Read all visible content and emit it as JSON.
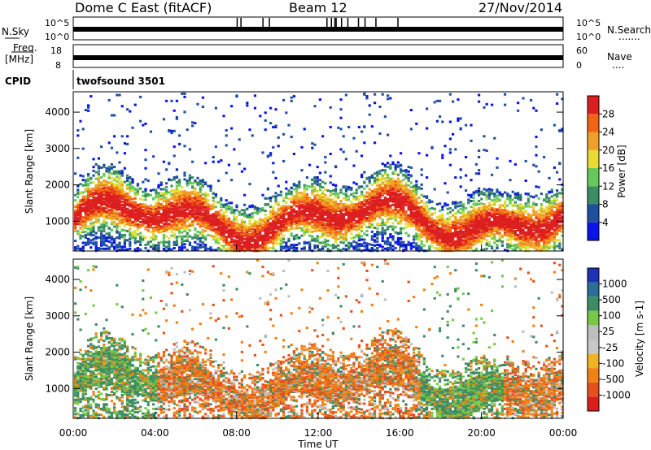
{
  "header": {
    "title": "Dome C East (fitACF)",
    "beam": "Beam 12",
    "date": "27/Nov/2014"
  },
  "noise_panel": {
    "left_label": "N.Sky",
    "right_label": "N.Search",
    "left_ticks": [
      "10^5",
      "10^0"
    ],
    "right_ticks": [
      "10^5",
      "10^0"
    ],
    "right_dots": "......."
  },
  "freq_panel": {
    "label_line1": "Freq.",
    "label_line2": "[MHz]",
    "left_ticks": [
      "18",
      "8"
    ],
    "right_label": "Nave",
    "right_ticks": [
      "60",
      "0"
    ],
    "right_dots": "...."
  },
  "cpid_panel": {
    "label": "CPID",
    "value": "twofsound 3501"
  },
  "colors": {
    "power_scale": [
      "#0a14e6",
      "#1e50a0",
      "#3c8c64",
      "#64c85a",
      "#e6dc32",
      "#f0a028",
      "#f06414",
      "#dc1e1e"
    ],
    "velocity_scale": [
      "#1e32b4",
      "#2d6e96",
      "#3c8c64",
      "#78c846",
      "#bebebe",
      "#c8c8c8",
      "#f0b41e",
      "#f08214",
      "#e6501e",
      "#dc1e1e"
    ]
  },
  "chart_data": [
    {
      "type": "heatmap",
      "quantity": "Power",
      "ylabel": "Slant Range [km]",
      "xlabel": "",
      "x_ticks": [
        "00:00",
        "04:00",
        "08:00",
        "12:00",
        "16:00",
        "20:00",
        "00:00"
      ],
      "x_range_hours": [
        0,
        24
      ],
      "y_ticks": [
        1000,
        2000,
        3000,
        4000
      ],
      "ylim": [
        180,
        4560
      ],
      "colorbar": {
        "label": "Power [dB]",
        "ticks": [
          4,
          8,
          12,
          16,
          20,
          24,
          28
        ],
        "range": [
          0,
          32
        ]
      }
    },
    {
      "type": "heatmap",
      "quantity": "Velocity",
      "ylabel": "Slant Range [km]",
      "xlabel": "Time UT",
      "x_ticks": [
        "00:00",
        "04:00",
        "08:00",
        "12:00",
        "16:00",
        "20:00",
        "00:00"
      ],
      "x_range_hours": [
        0,
        24
      ],
      "y_ticks": [
        1000,
        2000,
        3000,
        4000
      ],
      "ylim": [
        180,
        4560
      ],
      "colorbar": {
        "label": "Velocity [m s-1]",
        "ticks": [
          "1000",
          "500",
          "100",
          "25",
          "-25",
          "-100",
          "-500",
          "-1000"
        ]
      }
    }
  ]
}
